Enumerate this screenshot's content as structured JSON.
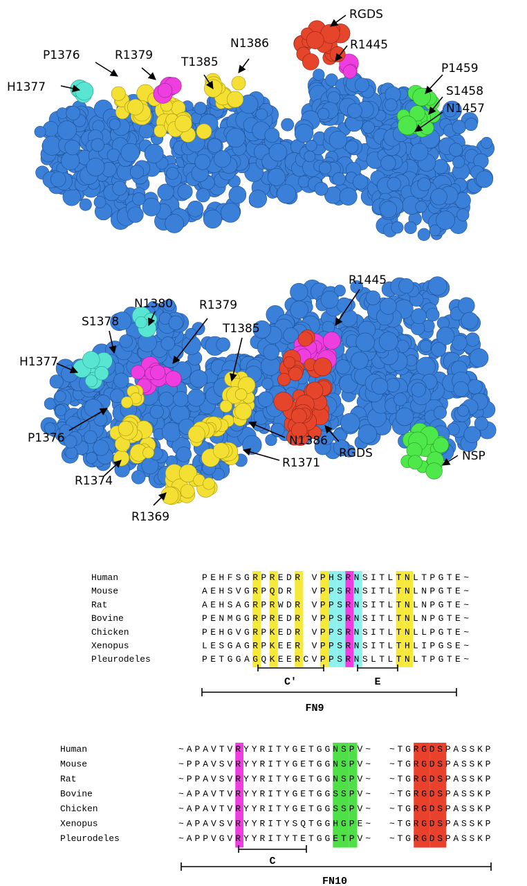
{
  "structure_top": {
    "labels": [
      "RGDS",
      "R1445",
      "P1459",
      "S1458",
      "N1457",
      "N1386",
      "T1385",
      "R1379",
      "P1376",
      "H1377"
    ]
  },
  "structure_bottom": {
    "labels": [
      "R1445",
      "N1380",
      "R1379",
      "S1378",
      "T1385",
      "H1377",
      "P1376",
      "N1386",
      "RGDS",
      "R1371",
      "NSP",
      "R1374",
      "R1369"
    ]
  },
  "fn9": {
    "species": [
      "Human",
      "Mouse",
      "Rat",
      "Bovine",
      "Chicken",
      "Xenopus",
      "Pleurodeles"
    ],
    "sequences": [
      "PEHFSGRPREDR VPHSRNSITLTNLTPGTE~",
      "AEHSVGRPQDR  VPPSRNSITLTNLNPGTE~",
      "AEHSAGRPRWDR VPPSRNSITLTNLNPGTE~",
      "PENMGGRPREDR VPPSRNSITLTNLNPGTE~",
      "PEHGVGRPKEDR VPPSRNSITLTNLLPGTE~",
      "LESGAGRPKEER VPPSRNSITLTHLIPGSE~",
      "PETGGAGQKEERCVPPSRNSLTLTNLTPGTE~"
    ],
    "strands": [
      "C'",
      "E"
    ],
    "domain": "FN9"
  },
  "fn10": {
    "species": [
      "Human",
      "Mouse",
      "Rat",
      "Bovine",
      "Chicken",
      "Xenopus",
      "Pleurodeles"
    ],
    "sequences": [
      "~APAVTVRYYRITYGETGGNSPV~",
      "~PPAVSVRYYRITYGETGGNSPV~",
      "~PPAVSVRYYRITYGETGGNSPV~",
      "~APAVTVRYYRITYGETGGSSPV~",
      "~APAVTVRYYRITYGETGGSSPV~",
      "~APAVSVRYYRITYSQTGGHGPE~",
      "~APPVGVRYYRITYTETGGETPV~"
    ],
    "tails": [
      "~TGRGDSPASSKP",
      "~TGRGDSPASSKP",
      "~TGRGDSPASSKP",
      "~TGRGDSPASSKP",
      "~TGRGDSPASSKP",
      "~TGRGDSPASSKP",
      "~TGRGDSPASSKP"
    ],
    "strands": [
      "C"
    ],
    "domain": "FN10"
  }
}
